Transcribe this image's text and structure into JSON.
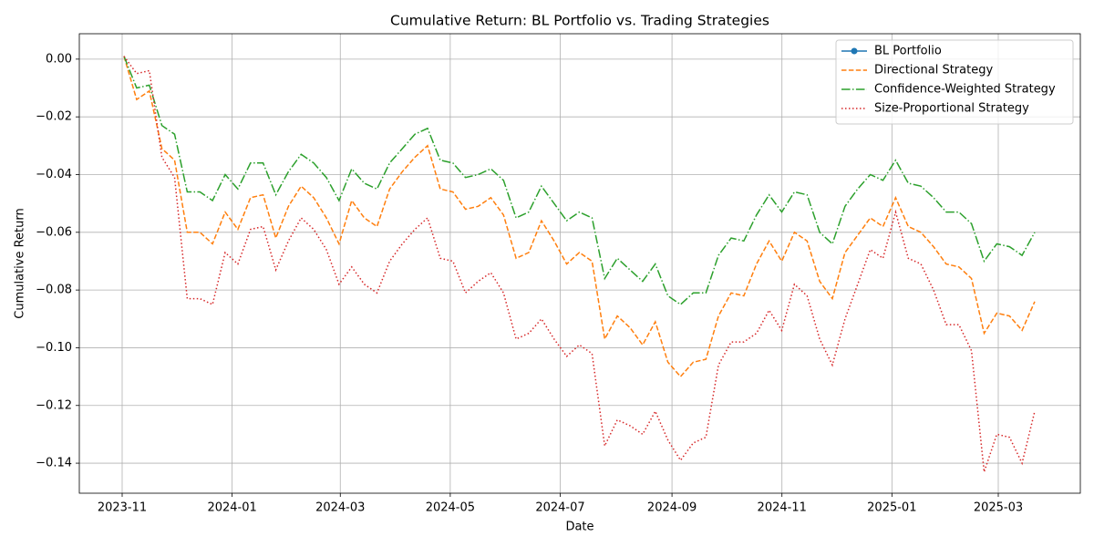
{
  "chart_data": {
    "type": "line",
    "title": "Cumulative Return: BL Portfolio vs. Trading Strategies",
    "x_label": "Date",
    "y_label": "Cumulative Return",
    "ylim": [
      -0.1504,
      0.0088
    ],
    "yticks": [
      {
        "value": 0,
        "label": "0.00"
      },
      {
        "value": -0.02,
        "label": "−0.02"
      },
      {
        "value": -0.04,
        "label": "−0.04"
      },
      {
        "value": -0.06,
        "label": "−0.06"
      },
      {
        "value": -0.08,
        "label": "−0.08"
      },
      {
        "value": -0.1,
        "label": "−0.10"
      },
      {
        "value": -0.12,
        "label": "−0.12"
      },
      {
        "value": -0.14,
        "label": "−0.14"
      }
    ],
    "xticks": [
      "2023-11",
      "2024-01",
      "2024-03",
      "2024-05",
      "2024-07",
      "2024-09",
      "2024-11",
      "2025-01",
      "2025-03"
    ],
    "grid": true,
    "legend": "upper right",
    "series": [
      {
        "name": "BL Portfolio",
        "color": "#1f77b4",
        "style": "solid-marker",
        "values": [
          null,
          null,
          null,
          null,
          null,
          null,
          null,
          null,
          null,
          null,
          null,
          null,
          null,
          null,
          null,
          null,
          null,
          null,
          null,
          null,
          null,
          null,
          null,
          null,
          null,
          null,
          null,
          null,
          null,
          null,
          null,
          null,
          null,
          null,
          null,
          null,
          null,
          null,
          null,
          null,
          null,
          null,
          null,
          null,
          null,
          null,
          null,
          null,
          null,
          null,
          null,
          null,
          null,
          null,
          null,
          null,
          null,
          null,
          null,
          null,
          null,
          null,
          null,
          null,
          null,
          null,
          null,
          null,
          null,
          null,
          null,
          null,
          null
        ]
      },
      {
        "name": "Directional Strategy",
        "color": "#ff7f0e",
        "style": "dashed",
        "values": [
          0.001,
          -0.014,
          -0.011,
          -0.031,
          -0.035,
          -0.06,
          -0.06,
          -0.064,
          -0.053,
          -0.059,
          -0.048,
          -0.047,
          -0.062,
          -0.051,
          -0.044,
          -0.048,
          -0.055,
          -0.064,
          -0.049,
          -0.055,
          -0.058,
          -0.045,
          -0.039,
          -0.034,
          -0.03,
          -0.045,
          -0.046,
          -0.052,
          -0.051,
          -0.048,
          -0.054,
          -0.069,
          -0.067,
          -0.056,
          -0.063,
          -0.071,
          -0.067,
          -0.07,
          -0.097,
          -0.089,
          -0.093,
          -0.099,
          -0.091,
          -0.105,
          -0.11,
          -0.105,
          -0.104,
          -0.089,
          -0.081,
          -0.082,
          -0.071,
          -0.063,
          -0.07,
          -0.06,
          -0.063,
          -0.077,
          -0.083,
          -0.067,
          -0.061,
          -0.055,
          -0.058,
          -0.048,
          -0.058,
          -0.06,
          -0.065,
          -0.071,
          -0.072,
          -0.076,
          -0.095,
          -0.088,
          -0.089,
          -0.094,
          -0.084
        ]
      },
      {
        "name": "Confidence-Weighted Strategy",
        "color": "#2ca02c",
        "style": "dashdot",
        "values": [
          0.001,
          -0.01,
          -0.009,
          -0.023,
          -0.026,
          -0.046,
          -0.046,
          -0.049,
          -0.04,
          -0.045,
          -0.036,
          -0.036,
          -0.047,
          -0.039,
          -0.033,
          -0.036,
          -0.041,
          -0.049,
          -0.038,
          -0.043,
          -0.045,
          -0.036,
          -0.031,
          -0.026,
          -0.024,
          -0.035,
          -0.036,
          -0.041,
          -0.04,
          -0.038,
          -0.042,
          -0.055,
          -0.053,
          -0.044,
          -0.05,
          -0.056,
          -0.053,
          -0.055,
          -0.076,
          -0.069,
          -0.073,
          -0.077,
          -0.071,
          -0.082,
          -0.085,
          -0.081,
          -0.081,
          -0.068,
          -0.062,
          -0.063,
          -0.054,
          -0.047,
          -0.053,
          -0.046,
          -0.047,
          -0.06,
          -0.064,
          -0.051,
          -0.045,
          -0.04,
          -0.042,
          -0.035,
          -0.043,
          -0.044,
          -0.048,
          -0.053,
          -0.053,
          -0.057,
          -0.07,
          -0.064,
          -0.065,
          -0.068,
          -0.06
        ]
      },
      {
        "name": "Size-Proportional Strategy",
        "color": "#d62728",
        "style": "dotted",
        "values": [
          0.001,
          -0.005,
          -0.004,
          -0.034,
          -0.041,
          -0.083,
          -0.083,
          -0.085,
          -0.067,
          -0.071,
          -0.059,
          -0.058,
          -0.073,
          -0.063,
          -0.055,
          -0.059,
          -0.066,
          -0.078,
          -0.072,
          -0.078,
          -0.081,
          -0.07,
          -0.064,
          -0.059,
          -0.055,
          -0.069,
          -0.07,
          -0.081,
          -0.077,
          -0.074,
          -0.081,
          -0.097,
          -0.095,
          -0.09,
          -0.097,
          -0.103,
          -0.099,
          -0.102,
          -0.134,
          -0.125,
          -0.127,
          -0.13,
          -0.122,
          -0.132,
          -0.139,
          -0.133,
          -0.131,
          -0.106,
          -0.098,
          -0.098,
          -0.095,
          -0.087,
          -0.094,
          -0.078,
          -0.082,
          -0.097,
          -0.106,
          -0.09,
          -0.078,
          -0.066,
          -0.069,
          -0.053,
          -0.069,
          -0.071,
          -0.08,
          -0.092,
          -0.092,
          -0.101,
          -0.143,
          -0.13,
          -0.131,
          -0.14,
          -0.122
        ]
      }
    ]
  }
}
